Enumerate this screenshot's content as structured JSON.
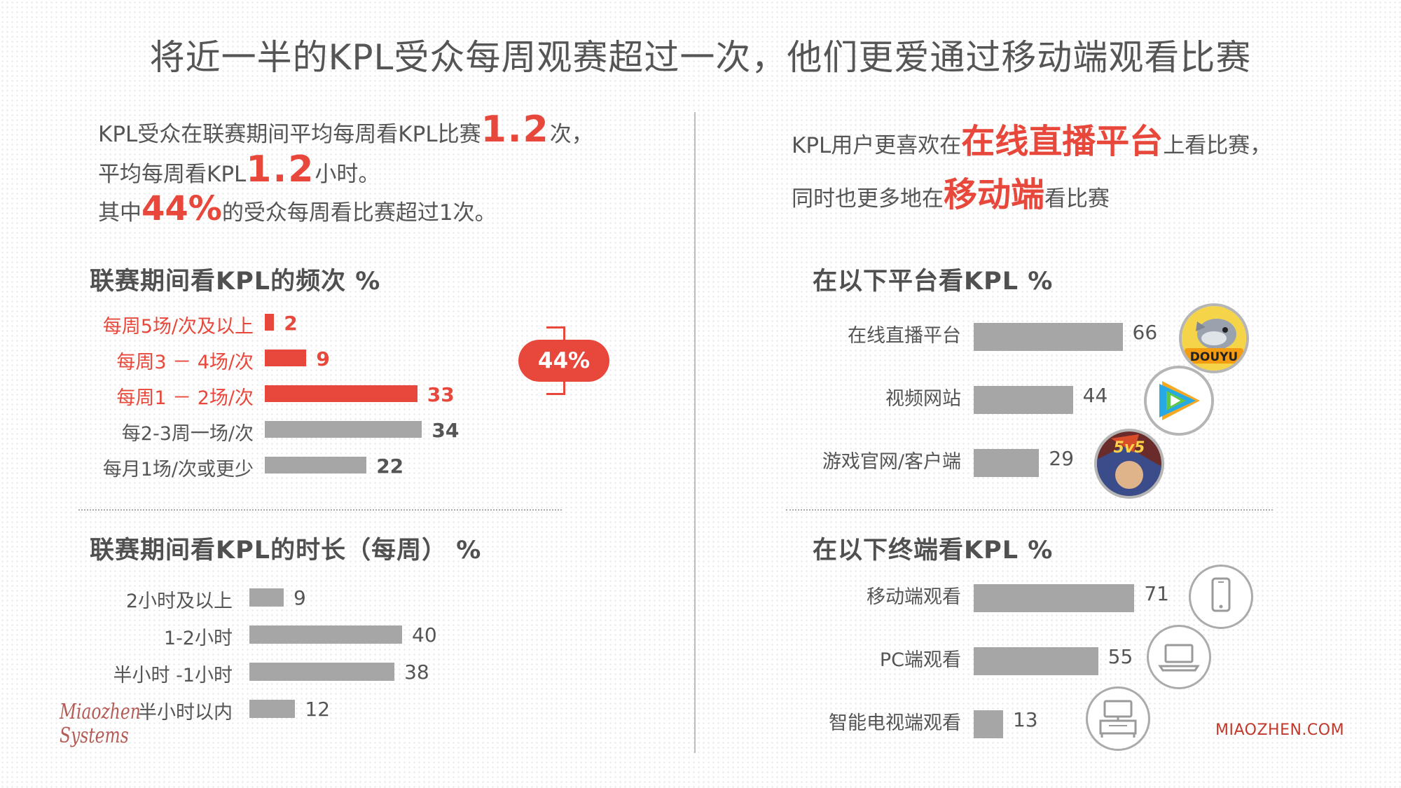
{
  "title": "将近一半的KPL受众每周观赛超过一次，他们更爱通过移动端观看比赛",
  "intro_left": {
    "line1_pre": "KPL受众在联赛期间平均每周看KPL比赛",
    "line1_num": "1.2",
    "line1_post": "次，",
    "line2_pre": "平均每周看KPL",
    "line2_num": "1.2",
    "line2_post": "小时。",
    "line3_pre": "其中",
    "line3_num": "44%",
    "line3_post": "的受众每周看比赛超过1次。"
  },
  "intro_right": {
    "line1_pre": "KPL用户更喜欢在",
    "line1_hl": "在线直播平台",
    "line1_post": "上看比赛，",
    "line2_pre": "同时也更多地在",
    "line2_hl": "移动端",
    "line2_post": "看比赛"
  },
  "bracket_label": "44%",
  "footer": {
    "brand_line1": "Miaozhen",
    "brand_line2": "Systems",
    "site": "MIAOZHEN.COM"
  },
  "icons": {
    "douyu": "douyu-logo-icon",
    "tencent_video": "tencent-video-icon",
    "game": "honor-of-kings-icon",
    "phone": "smartphone-icon",
    "laptop": "laptop-icon",
    "tv": "tv-icon"
  },
  "colors": {
    "accent": "#e8483b",
    "bar": "#a6a6a6",
    "text": "#555555"
  },
  "chart_data": [
    {
      "type": "bar",
      "orientation": "horizontal",
      "title": "联赛期间看KPL的频次 %",
      "categories": [
        "每周5场/次及以上",
        "每周3 － 4场/次",
        "每周1 － 2场/次",
        "每2-3周一场/次",
        "每月1场/次或更少"
      ],
      "values": [
        2,
        9,
        33,
        34,
        22
      ],
      "highlighted": [
        true,
        true,
        true,
        false,
        false
      ],
      "xlim": [
        0,
        40
      ]
    },
    {
      "type": "bar",
      "orientation": "horizontal",
      "title": "联赛期间看KPL的时长（每周） %",
      "categories": [
        "2小时及以上",
        "1-2小时",
        "半小时 -1小时",
        "半小时以内"
      ],
      "values": [
        9,
        40,
        38,
        12
      ],
      "xlim": [
        0,
        40
      ]
    },
    {
      "type": "bar",
      "orientation": "horizontal",
      "title": "在以下平台看KPL %",
      "categories": [
        "在线直播平台",
        "视频网站",
        "游戏官网/客户端"
      ],
      "values": [
        66,
        44,
        29
      ],
      "xlim": [
        0,
        80
      ]
    },
    {
      "type": "bar",
      "orientation": "horizontal",
      "title": "在以下终端看KPL %",
      "categories": [
        "移动端观看",
        "PC端观看",
        "智能电视端观看"
      ],
      "values": [
        71,
        55,
        13
      ],
      "xlim": [
        0,
        80
      ]
    }
  ]
}
